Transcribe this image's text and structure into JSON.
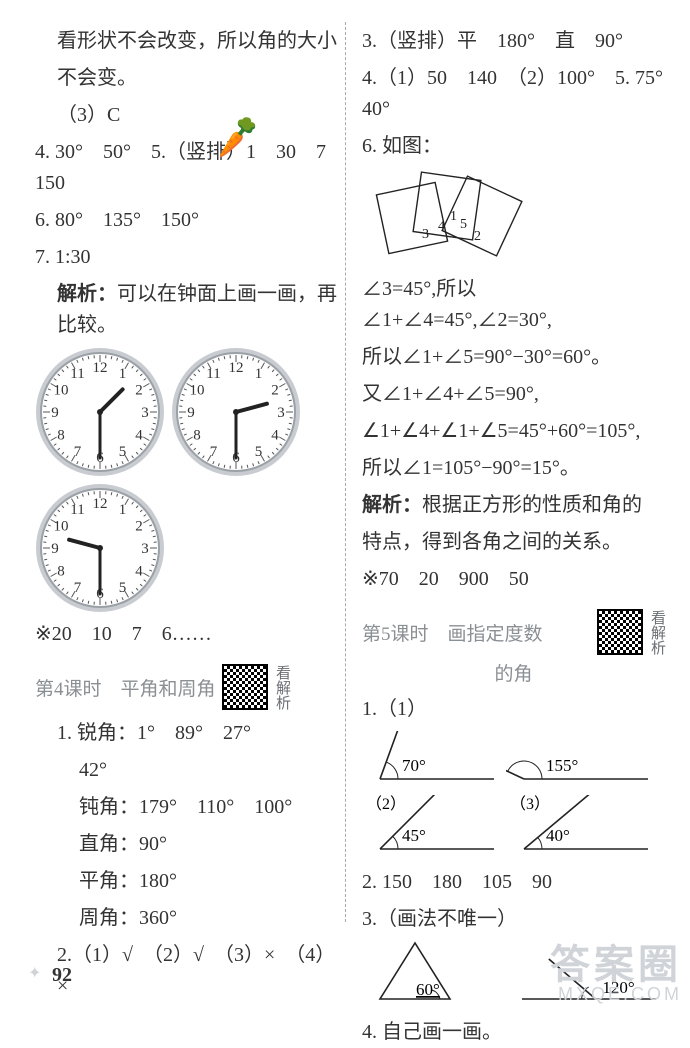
{
  "page_number": "92",
  "left": {
    "intro1": "看形状不会改变，所以角的大小",
    "intro2": "不会变。",
    "p3c": "（3）C",
    "q4": "4. 30°　50°　5.（竖排）1　30　7　150",
    "q6": "6. 80°　135°　150°",
    "q7": "7. 1:30",
    "q7_expl_label": "解析：",
    "q7_expl": "可以在钟面上画一画，再比较。",
    "clocks": [
      {
        "hour": 1,
        "minute": 30
      },
      {
        "hour": 2,
        "minute": 30
      },
      {
        "hour": 9,
        "minute": 30
      }
    ],
    "clock_style": {
      "size": 130,
      "face_fill": "#ffffff",
      "rim_outer": "#c8ccd0",
      "rim_inner": "#9aa0a6",
      "numeral_color": "#333333",
      "numeral_fontsize": 15,
      "tick_color": "#555555",
      "hand_color": "#222222",
      "hour_len": 32,
      "minute_len": 46,
      "hour_width": 4,
      "minute_width": 3
    },
    "star_line": "※20　10　7　6……",
    "lesson4_title1": "第4课时　平角和周角",
    "lesson4_qr_label": "看解析",
    "l4_q1a": "1. 锐角：1°　89°　27°",
    "l4_q1b": "42°",
    "l4_q1c": "钝角：179°　110°　100°",
    "l4_q1d": "直角：90°",
    "l4_q1e": "平角：180°",
    "l4_q1f": "周角：360°",
    "l4_q2": "2.（1）√　（2）√　（3）×　（4）×"
  },
  "right": {
    "q3": "3.（竖排）平　180°　直　90°",
    "q4": "4.（1）50　140　（2）100°　5. 75°　40°",
    "q6_label": "6. 如图：",
    "fig6": {
      "width": 170,
      "height": 100,
      "stroke": "#222222",
      "fill": "none",
      "label_fontsize": 14,
      "labels": [
        "1",
        "2",
        "3",
        "4",
        "5"
      ]
    },
    "eq1": "∠3=45°,所以∠1+∠4=45°,∠2=30°,",
    "eq2": "所以∠1+∠5=90°−30°=60°。",
    "eq3": "又∠1+∠4+∠5=90°,",
    "eq4": "∠1+∠4+∠1+∠5=45°+60°=105°,",
    "eq5": "所以∠1=105°−90°=15°。",
    "expl_label": "解析：",
    "expl_text1": "根据正方形的性质和角的",
    "expl_text2": "特点，得到各角之间的关系。",
    "star_line": "※70　20　900　50",
    "lesson5_title1": "第5课时　画指定度数",
    "lesson5_title2": "的角",
    "lesson5_qr_label": "看解析",
    "q1_label": "1.（1）",
    "angles_q1": {
      "a1": {
        "label": "70°",
        "deg": 70
      },
      "a2": {
        "label": "155°",
        "deg": 155,
        "sub": ""
      },
      "a3": {
        "label": "45°",
        "deg": 45,
        "sub": "（2）"
      },
      "a4": {
        "label": "40°",
        "deg": 40,
        "sub": "（3）"
      }
    },
    "q2": "2. 150　180　105　90",
    "q3b_label": "3.（画法不唯一）",
    "angles_q3": {
      "a1": {
        "label": "60°"
      },
      "a2": {
        "label": "120°"
      }
    },
    "q4b": "4. 自己画一画。",
    "angle_style": {
      "stroke": "#222222",
      "stroke_width": 1.6,
      "arc_stroke": "#222222",
      "label_fontsize": 17
    }
  },
  "watermark": {
    "big": "答案圈",
    "small": "MXQE.COM"
  }
}
